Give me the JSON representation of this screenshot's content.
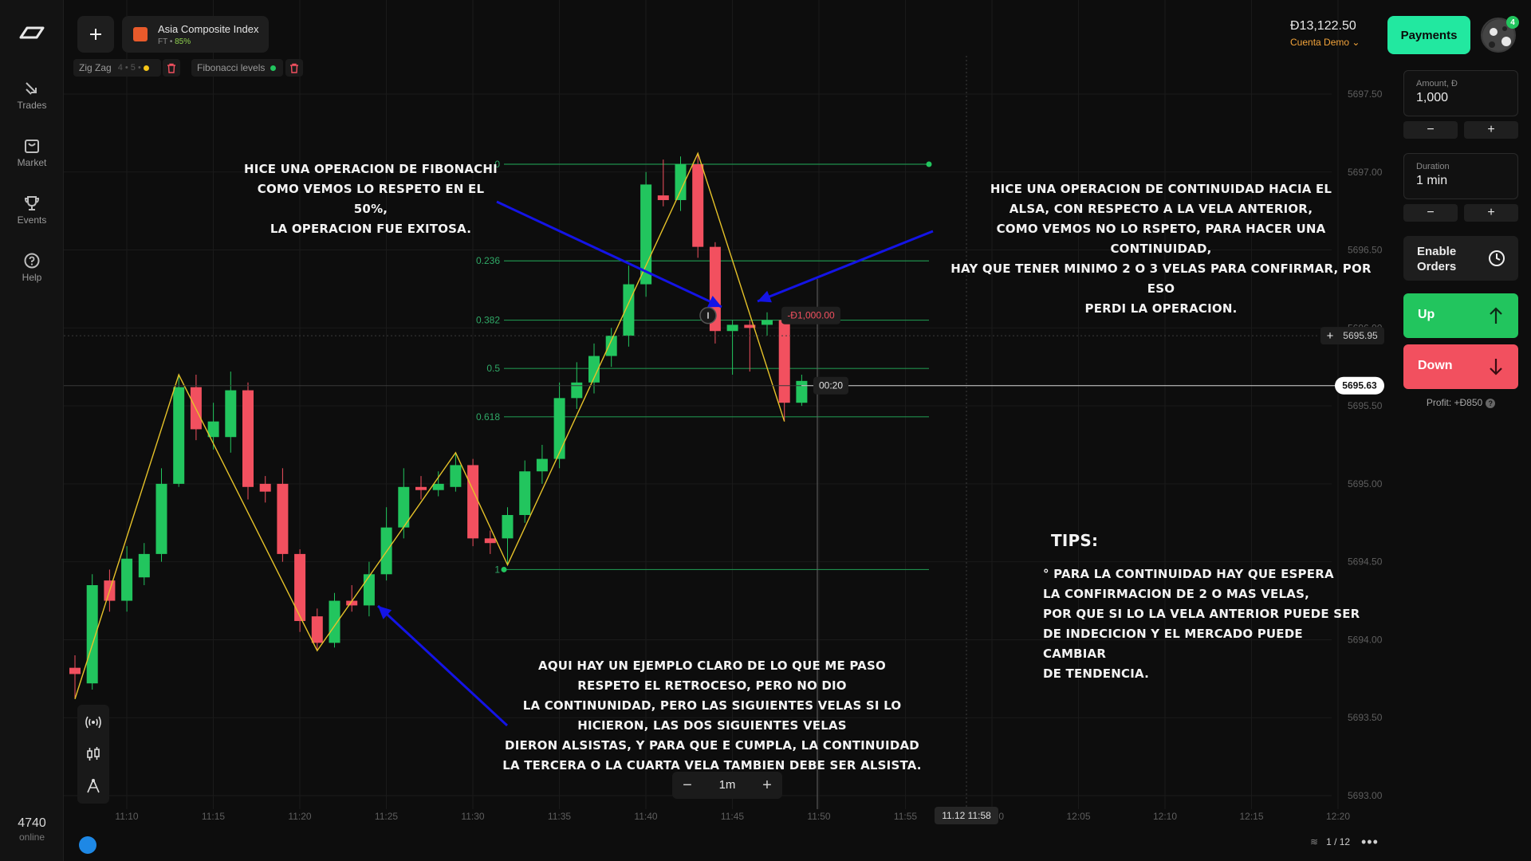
{
  "sidebar": {
    "items": [
      {
        "label": "Trades",
        "icon": "trades-icon"
      },
      {
        "label": "Market",
        "icon": "market-icon"
      },
      {
        "label": "Events",
        "icon": "trophy-icon"
      },
      {
        "label": "Help",
        "icon": "help-icon"
      }
    ],
    "online_count": "4740",
    "online_label": "online"
  },
  "header": {
    "asset_name": "Asia Composite Index",
    "asset_type": "FT",
    "asset_payout": "85%",
    "balance": "Đ13,122.50",
    "account": "Cuenta Demo",
    "payments_label": "Payments",
    "avatar_badge": "4"
  },
  "indicators": [
    {
      "name": "Zig Zag",
      "params": "4 • 5 •",
      "dot_color": "#f5c518"
    },
    {
      "name": "Fibonacci levels",
      "params": "",
      "dot_color": "#22c55e"
    }
  ],
  "panel": {
    "amount_label": "Amount, Đ",
    "amount_value": "1,000",
    "duration_label": "Duration",
    "duration_value": "1 min",
    "enable_orders_label": "Enable Orders",
    "up_label": "Up",
    "down_label": "Down",
    "profit": "Profit: +Đ850",
    "up_color": "#22c55e",
    "down_color": "#f2505f"
  },
  "chart_data": {
    "type": "candlestick",
    "x_ticks": [
      "11:10",
      "11:15",
      "11:20",
      "11:25",
      "11:30",
      "11:35",
      "11:40",
      "11:45",
      "11:50",
      "11:55",
      "12:00",
      "12:05",
      "12:10",
      "12:15",
      "12:20"
    ],
    "y_ticks": [
      "5697.50",
      "5697.00",
      "5696.50",
      "5696.00",
      "5695.50",
      "5695.00",
      "5694.50",
      "5694.00",
      "5693.50",
      "5693.00"
    ],
    "ylim": [
      5692.9,
      5697.6
    ],
    "candles": [
      {
        "o": 5693.82,
        "c": 5693.78,
        "h": 5693.9,
        "l": 5693.62
      },
      {
        "o": 5693.72,
        "c": 5694.35,
        "h": 5694.42,
        "l": 5693.68
      },
      {
        "o": 5694.38,
        "c": 5694.25,
        "h": 5694.45,
        "l": 5694.18
      },
      {
        "o": 5694.25,
        "c": 5694.52,
        "h": 5694.6,
        "l": 5694.18
      },
      {
        "o": 5694.4,
        "c": 5694.55,
        "h": 5694.62,
        "l": 5694.35
      },
      {
        "o": 5694.55,
        "c": 5695.0,
        "h": 5695.1,
        "l": 5694.5
      },
      {
        "o": 5695.0,
        "c": 5695.62,
        "h": 5695.7,
        "l": 5694.98
      },
      {
        "o": 5695.62,
        "c": 5695.35,
        "h": 5695.7,
        "l": 5695.28
      },
      {
        "o": 5695.3,
        "c": 5695.4,
        "h": 5695.52,
        "l": 5695.22
      },
      {
        "o": 5695.3,
        "c": 5695.6,
        "h": 5695.72,
        "l": 5695.2
      },
      {
        "o": 5695.6,
        "c": 5694.98,
        "h": 5695.65,
        "l": 5694.9
      },
      {
        "o": 5695.0,
        "c": 5694.95,
        "h": 5695.05,
        "l": 5694.88
      },
      {
        "o": 5695.0,
        "c": 5694.55,
        "h": 5695.1,
        "l": 5694.5
      },
      {
        "o": 5694.55,
        "c": 5694.12,
        "h": 5694.58,
        "l": 5694.05
      },
      {
        "o": 5694.15,
        "c": 5693.98,
        "h": 5694.2,
        "l": 5693.93
      },
      {
        "o": 5693.98,
        "c": 5694.25,
        "h": 5694.3,
        "l": 5693.95
      },
      {
        "o": 5694.25,
        "c": 5694.22,
        "h": 5694.35,
        "l": 5694.18
      },
      {
        "o": 5694.22,
        "c": 5694.42,
        "h": 5694.5,
        "l": 5694.15
      },
      {
        "o": 5694.42,
        "c": 5694.72,
        "h": 5694.85,
        "l": 5694.38
      },
      {
        "o": 5694.72,
        "c": 5694.98,
        "h": 5695.1,
        "l": 5694.65
      },
      {
        "o": 5694.98,
        "c": 5694.96,
        "h": 5695.05,
        "l": 5694.9
      },
      {
        "o": 5694.96,
        "c": 5695.0,
        "h": 5695.08,
        "l": 5694.92
      },
      {
        "o": 5694.98,
        "c": 5695.12,
        "h": 5695.2,
        "l": 5694.95
      },
      {
        "o": 5695.12,
        "c": 5694.65,
        "h": 5695.16,
        "l": 5694.6
      },
      {
        "o": 5694.65,
        "c": 5694.62,
        "h": 5694.7,
        "l": 5694.55
      },
      {
        "o": 5694.65,
        "c": 5694.8,
        "h": 5694.85,
        "l": 5694.48
      },
      {
        "o": 5694.8,
        "c": 5695.08,
        "h": 5695.15,
        "l": 5694.75
      },
      {
        "o": 5695.08,
        "c": 5695.16,
        "h": 5695.25,
        "l": 5695.0
      },
      {
        "o": 5695.16,
        "c": 5695.55,
        "h": 5695.65,
        "l": 5695.1
      },
      {
        "o": 5695.55,
        "c": 5695.65,
        "h": 5695.78,
        "l": 5695.48
      },
      {
        "o": 5695.65,
        "c": 5695.82,
        "h": 5695.9,
        "l": 5695.58
      },
      {
        "o": 5695.82,
        "c": 5695.95,
        "h": 5696.0,
        "l": 5695.75
      },
      {
        "o": 5695.95,
        "c": 5696.28,
        "h": 5696.4,
        "l": 5695.88
      },
      {
        "o": 5696.28,
        "c": 5696.92,
        "h": 5697.0,
        "l": 5696.2
      },
      {
        "o": 5696.85,
        "c": 5696.82,
        "h": 5697.08,
        "l": 5696.78
      },
      {
        "o": 5696.82,
        "c": 5697.05,
        "h": 5697.1,
        "l": 5696.75
      },
      {
        "o": 5697.05,
        "c": 5696.52,
        "h": 5697.12,
        "l": 5696.45
      },
      {
        "o": 5696.52,
        "c": 5695.98,
        "h": 5696.55,
        "l": 5695.9
      },
      {
        "o": 5695.98,
        "c": 5696.02,
        "h": 5696.05,
        "l": 5695.7
      },
      {
        "o": 5696.02,
        "c": 5696.0,
        "h": 5696.05,
        "l": 5695.72
      },
      {
        "o": 5696.02,
        "c": 5696.05,
        "h": 5696.1,
        "l": 5695.95
      },
      {
        "o": 5696.05,
        "c": 5695.52,
        "h": 5696.08,
        "l": 5695.4
      },
      {
        "o": 5695.52,
        "c": 5695.66,
        "h": 5695.7,
        "l": 5695.5
      }
    ],
    "zigzag": [
      [
        5693.62,
        0
      ],
      [
        5695.7,
        6
      ],
      [
        5693.93,
        14
      ],
      [
        5695.2,
        22
      ],
      [
        5694.48,
        25
      ],
      [
        5697.12,
        36
      ],
      [
        5695.4,
        41
      ]
    ],
    "fibonacci": {
      "levels": [
        {
          "label": "0",
          "value": 5697.05
        },
        {
          "label": "0.236",
          "value": 5696.43
        },
        {
          "label": "0.382",
          "value": 5696.05
        },
        {
          "label": "0.5",
          "value": 5695.74
        },
        {
          "label": "0.618",
          "value": 5695.43
        },
        {
          "label": "1",
          "value": 5694.45
        }
      ],
      "color": "#1f8f4d"
    },
    "trade_marker": "-Đ1,000.00",
    "timer": "00:20",
    "current_price": "5695.63",
    "crosshair_price": "5695.95",
    "cursor_time": "11.12 11:58"
  },
  "annotations": {
    "fib": "Hice una operacion de fibonachi\ncomo vemos lo respeto en el 50%,\nla operacion fue exitosa.",
    "continuity": "Hice una operacion de continuidad hacia el\nalsa, con respecto a la vela anterior,\ncomo vemos no lo rspeto, para hacer una continuidad,\nhay que tener minimo 2 o 3 velas para confirmar, por eso\nperdi la operacion.",
    "example": "Aqui hay un ejemplo claro de lo que me paso\nrespeto el retroceso, pero no dio\nla continunidad, pero las siguientes velas si lo\nhicieron, las dos siguientes velas\ndieron alsistas, y para que e cumpla, la continuidad\nla tercera o la cuarta vela tambien debe ser alsista.",
    "tips_title": "TIPS:",
    "tips_body": "° Para la continuidad hay que espera\n   la confirmacion de 2 o mas velas,\n   por que si lo la vela anterior puede ser\n   de indecicion y el mercado puede cambiar\n   de tendencia."
  },
  "timeframe": {
    "value": "1m"
  },
  "pager": "1 / 12"
}
